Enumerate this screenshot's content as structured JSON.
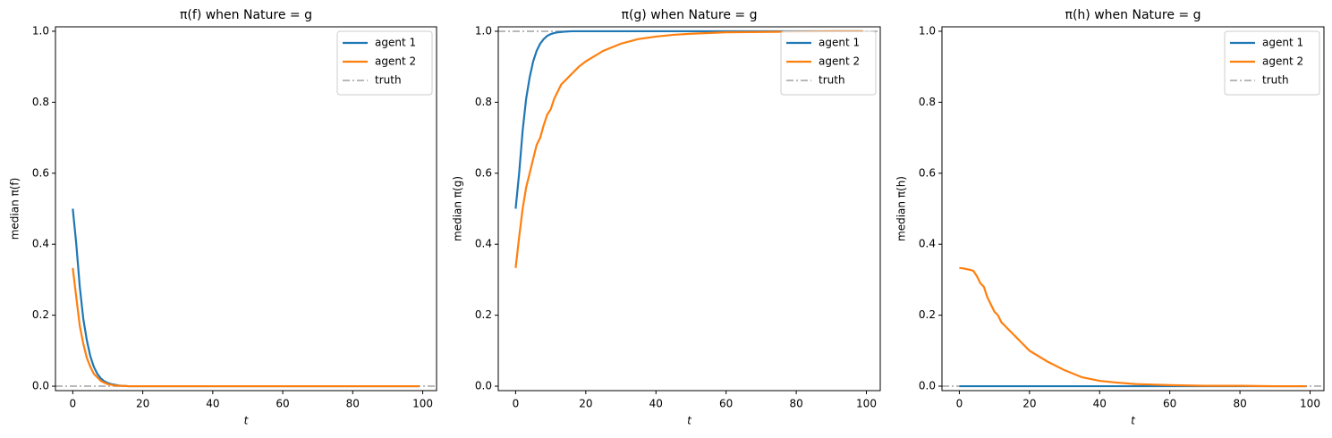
{
  "chart_data": [
    {
      "type": "line",
      "title": "π(f) when Nature = g",
      "xlabel": "t",
      "ylabel": "median π(f)",
      "x": [
        0,
        1,
        2,
        3,
        4,
        5,
        6,
        7,
        8,
        9,
        10,
        11,
        12,
        13,
        14,
        16,
        18,
        20,
        25,
        30,
        35,
        40,
        45,
        50,
        60,
        70,
        80,
        90,
        99
      ],
      "series": [
        {
          "name": "agent 1",
          "color": "#1f77b4",
          "values": [
            0.5,
            0.4,
            0.28,
            0.19,
            0.13,
            0.085,
            0.055,
            0.035,
            0.022,
            0.014,
            0.009,
            0.006,
            0.004,
            0.002,
            0.001,
            0,
            0,
            0,
            0,
            0,
            0,
            0,
            0,
            0,
            0,
            0,
            0,
            0,
            0
          ]
        },
        {
          "name": "agent 2",
          "color": "#ff7f0e",
          "values": [
            0.333,
            0.25,
            0.17,
            0.12,
            0.08,
            0.055,
            0.035,
            0.025,
            0.015,
            0.01,
            0.006,
            0.004,
            0.002,
            0.001,
            0.001,
            0,
            0,
            0,
            0,
            0,
            0,
            0,
            0,
            0,
            0,
            0,
            0,
            0,
            0
          ]
        }
      ],
      "truth": {
        "name": "truth",
        "color": "#a0a0a0",
        "value": 0
      },
      "xlim": [
        -4.95,
        103.95
      ],
      "ylim": [
        -0.0125,
        1.0125
      ],
      "xticks": [
        0,
        20,
        40,
        60,
        80,
        100
      ],
      "yticks": [
        {
          "value": 0,
          "label": "0.0"
        },
        0.2,
        0.4,
        0.6,
        0.8,
        {
          "value": 1,
          "label": "1.0"
        }
      ],
      "legend": "upper right"
    },
    {
      "type": "line",
      "title": "π(g) when Nature = g",
      "xlabel": "t",
      "ylabel": "median π(g)",
      "x": [
        0,
        1,
        2,
        3,
        4,
        5,
        6,
        7,
        8,
        9,
        10,
        11,
        12,
        13,
        14,
        16,
        18,
        20,
        25,
        30,
        35,
        40,
        45,
        50,
        60,
        70,
        80,
        90,
        99
      ],
      "series": [
        {
          "name": "agent 1",
          "color": "#1f77b4",
          "values": [
            0.5,
            0.6,
            0.72,
            0.81,
            0.87,
            0.915,
            0.945,
            0.965,
            0.978,
            0.987,
            0.992,
            0.995,
            0.997,
            0.998,
            0.999,
            1,
            1,
            1,
            1,
            1,
            1,
            1,
            1,
            1,
            1,
            1,
            1,
            1,
            1
          ]
        },
        {
          "name": "agent 2",
          "color": "#ff7f0e",
          "values": [
            0.333,
            0.42,
            0.5,
            0.56,
            0.6,
            0.64,
            0.68,
            0.7,
            0.735,
            0.765,
            0.78,
            0.81,
            0.83,
            0.85,
            0.86,
            0.88,
            0.9,
            0.915,
            0.945,
            0.965,
            0.978,
            0.985,
            0.99,
            0.993,
            0.997,
            0.998,
            0.999,
            1,
            1
          ]
        }
      ],
      "truth": {
        "name": "truth",
        "color": "#a0a0a0",
        "value": 1
      },
      "xlim": [
        -4.95,
        103.95
      ],
      "ylim": [
        -0.0125,
        1.0125
      ],
      "xticks": [
        0,
        20,
        40,
        60,
        80,
        100
      ],
      "yticks": [
        {
          "value": 0,
          "label": "0.0"
        },
        0.2,
        0.4,
        0.6,
        0.8,
        {
          "value": 1,
          "label": "1.0"
        }
      ],
      "legend": "upper right"
    },
    {
      "type": "line",
      "title": "π(h) when Nature = g",
      "xlabel": "t",
      "ylabel": "median π(h)",
      "x": [
        0,
        1,
        2,
        3,
        4,
        5,
        6,
        7,
        8,
        9,
        10,
        11,
        12,
        13,
        14,
        16,
        18,
        20,
        25,
        30,
        35,
        40,
        45,
        50,
        60,
        70,
        80,
        90,
        99
      ],
      "series": [
        {
          "name": "agent 1",
          "color": "#1f77b4",
          "values": [
            0,
            0,
            0,
            0,
            0,
            0,
            0,
            0,
            0,
            0,
            0,
            0,
            0,
            0,
            0,
            0,
            0,
            0,
            0,
            0,
            0,
            0,
            0,
            0,
            0,
            0,
            0,
            0,
            0
          ]
        },
        {
          "name": "agent 2",
          "color": "#ff7f0e",
          "values": [
            0.333,
            0.332,
            0.33,
            0.328,
            0.325,
            0.31,
            0.29,
            0.28,
            0.25,
            0.23,
            0.21,
            0.2,
            0.18,
            0.17,
            0.16,
            0.14,
            0.12,
            0.1,
            0.07,
            0.045,
            0.025,
            0.015,
            0.01,
            0.006,
            0.003,
            0.001,
            0.001,
            0,
            0
          ]
        }
      ],
      "truth": {
        "name": "truth",
        "color": "#a0a0a0",
        "value": 0
      },
      "xlim": [
        -4.95,
        103.95
      ],
      "ylim": [
        -0.0125,
        1.0125
      ],
      "xticks": [
        0,
        20,
        40,
        60,
        80,
        100
      ],
      "yticks": [
        {
          "value": 0,
          "label": "0.0"
        },
        0.2,
        0.4,
        0.6,
        0.8,
        {
          "value": 1,
          "label": "1.0"
        }
      ],
      "legend": "upper right"
    }
  ]
}
